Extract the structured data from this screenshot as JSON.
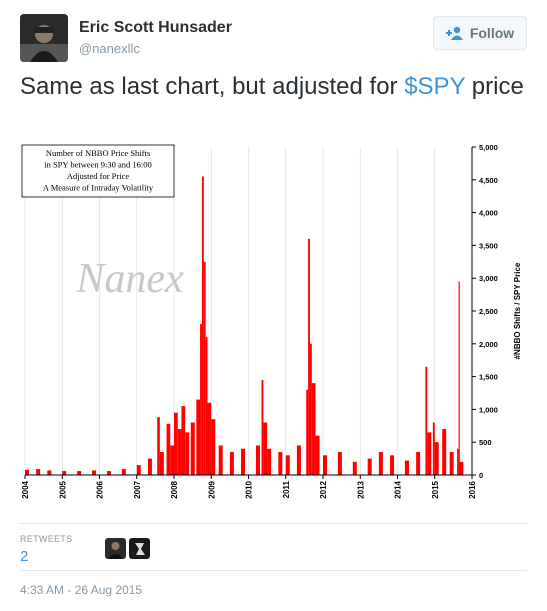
{
  "tweet": {
    "author_name": "Eric Scott Hunsader",
    "author_handle": "@nanexllc",
    "follow_label": "Follow",
    "text_before": "Same as last chart, but adjusted for ",
    "cashtag": "$SPY",
    "text_after": " price",
    "retweets_label": "RETWEETS",
    "retweets_count": "2",
    "timestamp": "4:33 AM - 26 Aug 2015"
  },
  "colors": {
    "cashtag": "#3b94d9",
    "series": "#ff0000",
    "muted": "#8899a6"
  },
  "chart_data": {
    "type": "bar",
    "legend_box": [
      "Number of NBBO Price Shifts",
      "in SPY between 9:30 and 16:00",
      "Adjusted for Price",
      "A Measure of Intraday Volatility"
    ],
    "watermark": "Nanex",
    "ylabel": "#NBBO Shifts / SPY Price",
    "ylim": [
      0,
      5000
    ],
    "y_ticks": [
      0,
      500,
      1000,
      1500,
      2000,
      2500,
      3000,
      3500,
      4000,
      4500,
      5000
    ],
    "y_tick_labels": [
      "0",
      "500",
      "1,000",
      "1,500",
      "2,000",
      "2,500",
      "3,000",
      "3,500",
      "4,000",
      "4,500",
      "5,000"
    ],
    "xlim": [
      2004,
      2016
    ],
    "x_ticks": [
      "2004",
      "2005",
      "2006",
      "2007",
      "2008",
      "2009",
      "2010",
      "2011",
      "2012",
      "2013",
      "2014",
      "2015",
      "2016"
    ],
    "series": [
      {
        "x": [
          2004.0,
          2004.3,
          2004.6,
          2005.0,
          2005.4,
          2005.8,
          2006.2,
          2006.6,
          2007.0,
          2007.3,
          2007.55,
          2007.62,
          2007.8,
          2007.9,
          2008.0,
          2008.1,
          2008.2,
          2008.3,
          2008.45,
          2008.6,
          2008.7,
          2008.75,
          2008.8,
          2008.85,
          2008.9,
          2009.0,
          2009.2,
          2009.5,
          2009.8,
          2010.2,
          2010.35,
          2010.4,
          2010.5,
          2010.8,
          2011.0,
          2011.3,
          2011.55,
          2011.6,
          2011.65,
          2011.7,
          2011.8,
          2012.0,
          2012.4,
          2012.8,
          2013.2,
          2013.5,
          2013.8,
          2014.2,
          2014.5,
          2014.75,
          2014.8,
          2014.95,
          2015.0,
          2015.2,
          2015.4,
          2015.6,
          2015.64,
          2015.66
        ],
        "values": [
          80,
          90,
          70,
          60,
          60,
          70,
          60,
          90,
          150,
          250,
          880,
          350,
          780,
          450,
          950,
          700,
          1050,
          650,
          800,
          1150,
          2300,
          4550,
          3250,
          2100,
          1100,
          850,
          450,
          350,
          400,
          450,
          1450,
          800,
          400,
          350,
          300,
          450,
          1300,
          3600,
          2000,
          1400,
          600,
          300,
          350,
          200,
          250,
          350,
          300,
          220,
          350,
          1650,
          650,
          800,
          500,
          700,
          350,
          400,
          2950,
          200
        ]
      }
    ]
  }
}
